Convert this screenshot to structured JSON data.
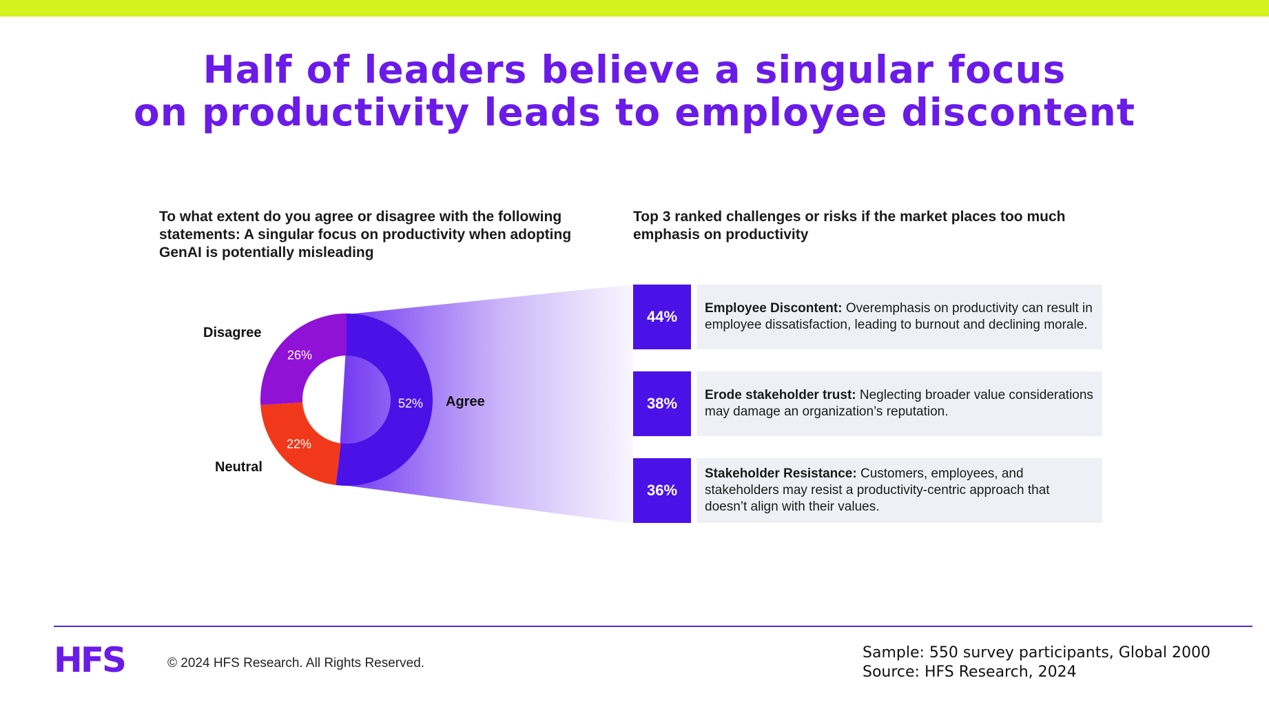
{
  "colors": {
    "accent_lime": "#d4f21e",
    "brand_purple": "#6a1be8",
    "agree": "#4a12e6",
    "disagree": "#8f12d6",
    "neutral": "#f2381a",
    "funnel_start": "#6a2cf0",
    "footer_line": "#4b2bd1"
  },
  "title": {
    "line1": "Half of leaders believe a singular focus",
    "line2": "on productivity leads to employee discontent"
  },
  "left_question": "To what extent do you agree or disagree with the following statements: A singular focus on productivity when adopting GenAI is potentially misleading",
  "right_question": "Top 3 ranked challenges or risks if the market places too much emphasis on productivity",
  "chart_data": [
    {
      "type": "pie",
      "title": "To what extent do you agree or disagree with the following statements: A singular focus on productivity when adopting GenAI is potentially misleading",
      "donut": true,
      "categories": [
        "Agree",
        "Neutral",
        "Disagree"
      ],
      "values": [
        52,
        22,
        26
      ],
      "value_labels": [
        "52%",
        "22%",
        "26%"
      ],
      "colors": [
        "#4a12e6",
        "#f2381a",
        "#8f12d6"
      ]
    },
    {
      "type": "table",
      "title": "Top 3 ranked challenges or risks if the market places too much emphasis on productivity",
      "rows": [
        {
          "value": 44,
          "label": "44%",
          "heading": "Employee Discontent:",
          "text": " Overemphasis on productivity can result in employee dissatisfaction, leading to burnout and declining morale."
        },
        {
          "value": 38,
          "label": "38%",
          "heading": "Erode stakeholder trust:",
          "text": " Neglecting broader value considerations may damage an organization’s reputation."
        },
        {
          "value": 36,
          "label": "36%",
          "heading": "Stakeholder Resistance:",
          "text": " Customers, employees, and stakeholders may resist a productivity-centric approach that doesn’t align with their values."
        }
      ]
    }
  ],
  "footer": {
    "logo": "HFS",
    "copyright": "© 2024 HFS Research. All Rights Reserved.",
    "sample": "Sample: 550 survey participants, Global 2000",
    "source": "Source: HFS Research, 2024"
  }
}
